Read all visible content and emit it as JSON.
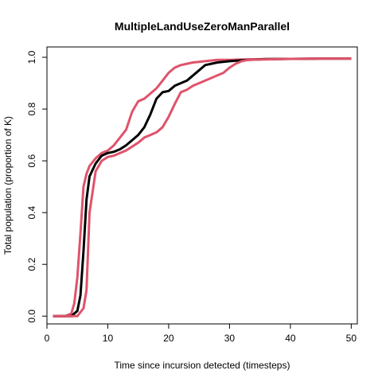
{
  "chart_data": {
    "type": "line",
    "title": "MultipleLandUseZeroManParallel",
    "xlabel": "Time since incursion detected (timesteps)",
    "ylabel": "Total population (proportion of K)",
    "xlim": [
      0,
      51
    ],
    "ylim": [
      -0.03,
      1.04
    ],
    "xticks": [
      0,
      10,
      20,
      30,
      40,
      50
    ],
    "yticks": [
      0.0,
      0.2,
      0.4,
      0.6,
      0.8,
      1.0
    ],
    "ytick_labels": [
      "0.0",
      "0.2",
      "0.4",
      "0.6",
      "0.8",
      "1.0"
    ],
    "grid": false,
    "legend": "none",
    "series": [
      {
        "color": "#DF536B",
        "role": "upper",
        "x": [
          1,
          3,
          4,
          4.5,
          5,
          5.5,
          6,
          6.5,
          7,
          8,
          9,
          10,
          11,
          12,
          13,
          14,
          15,
          16,
          17,
          18,
          19,
          20,
          21,
          22,
          23,
          24,
          26,
          28,
          30,
          33,
          36,
          40,
          45,
          50
        ],
        "y": [
          0.0,
          0.0,
          0.01,
          0.05,
          0.15,
          0.32,
          0.5,
          0.55,
          0.58,
          0.61,
          0.63,
          0.64,
          0.66,
          0.69,
          0.72,
          0.79,
          0.83,
          0.84,
          0.86,
          0.88,
          0.91,
          0.94,
          0.96,
          0.97,
          0.975,
          0.98,
          0.985,
          0.99,
          0.99,
          0.992,
          0.993,
          0.994,
          0.995,
          0.995
        ]
      },
      {
        "color": "#000000",
        "role": "mean",
        "x": [
          1,
          3,
          4,
          5,
          5.5,
          6,
          6.5,
          7,
          8,
          9,
          10,
          11,
          12,
          13,
          14,
          15,
          16,
          17,
          18,
          19,
          20,
          21,
          22,
          23,
          24,
          25,
          26,
          27,
          28,
          30,
          33,
          36,
          40,
          45,
          50
        ],
        "y": [
          0.0,
          0.0,
          0.0,
          0.02,
          0.08,
          0.25,
          0.45,
          0.54,
          0.59,
          0.62,
          0.63,
          0.635,
          0.645,
          0.66,
          0.68,
          0.7,
          0.73,
          0.78,
          0.84,
          0.865,
          0.87,
          0.89,
          0.9,
          0.91,
          0.93,
          0.95,
          0.97,
          0.975,
          0.98,
          0.985,
          0.99,
          0.993,
          0.994,
          0.995,
          0.995
        ]
      },
      {
        "color": "#DF536B",
        "role": "lower",
        "x": [
          1,
          3,
          4,
          5,
          6,
          6.5,
          7,
          8,
          9,
          10,
          11,
          12,
          13,
          14,
          15,
          16,
          17,
          18,
          19,
          20,
          21,
          22,
          23,
          24,
          25,
          26,
          27,
          28,
          29,
          30,
          31,
          32,
          33,
          36,
          40,
          45,
          50
        ],
        "y": [
          0.0,
          0.0,
          0.0,
          0.0,
          0.03,
          0.1,
          0.4,
          0.56,
          0.6,
          0.615,
          0.62,
          0.63,
          0.64,
          0.655,
          0.67,
          0.69,
          0.7,
          0.71,
          0.73,
          0.77,
          0.82,
          0.865,
          0.875,
          0.89,
          0.9,
          0.91,
          0.92,
          0.93,
          0.94,
          0.96,
          0.975,
          0.985,
          0.99,
          0.992,
          0.994,
          0.995,
          0.995
        ]
      }
    ]
  }
}
